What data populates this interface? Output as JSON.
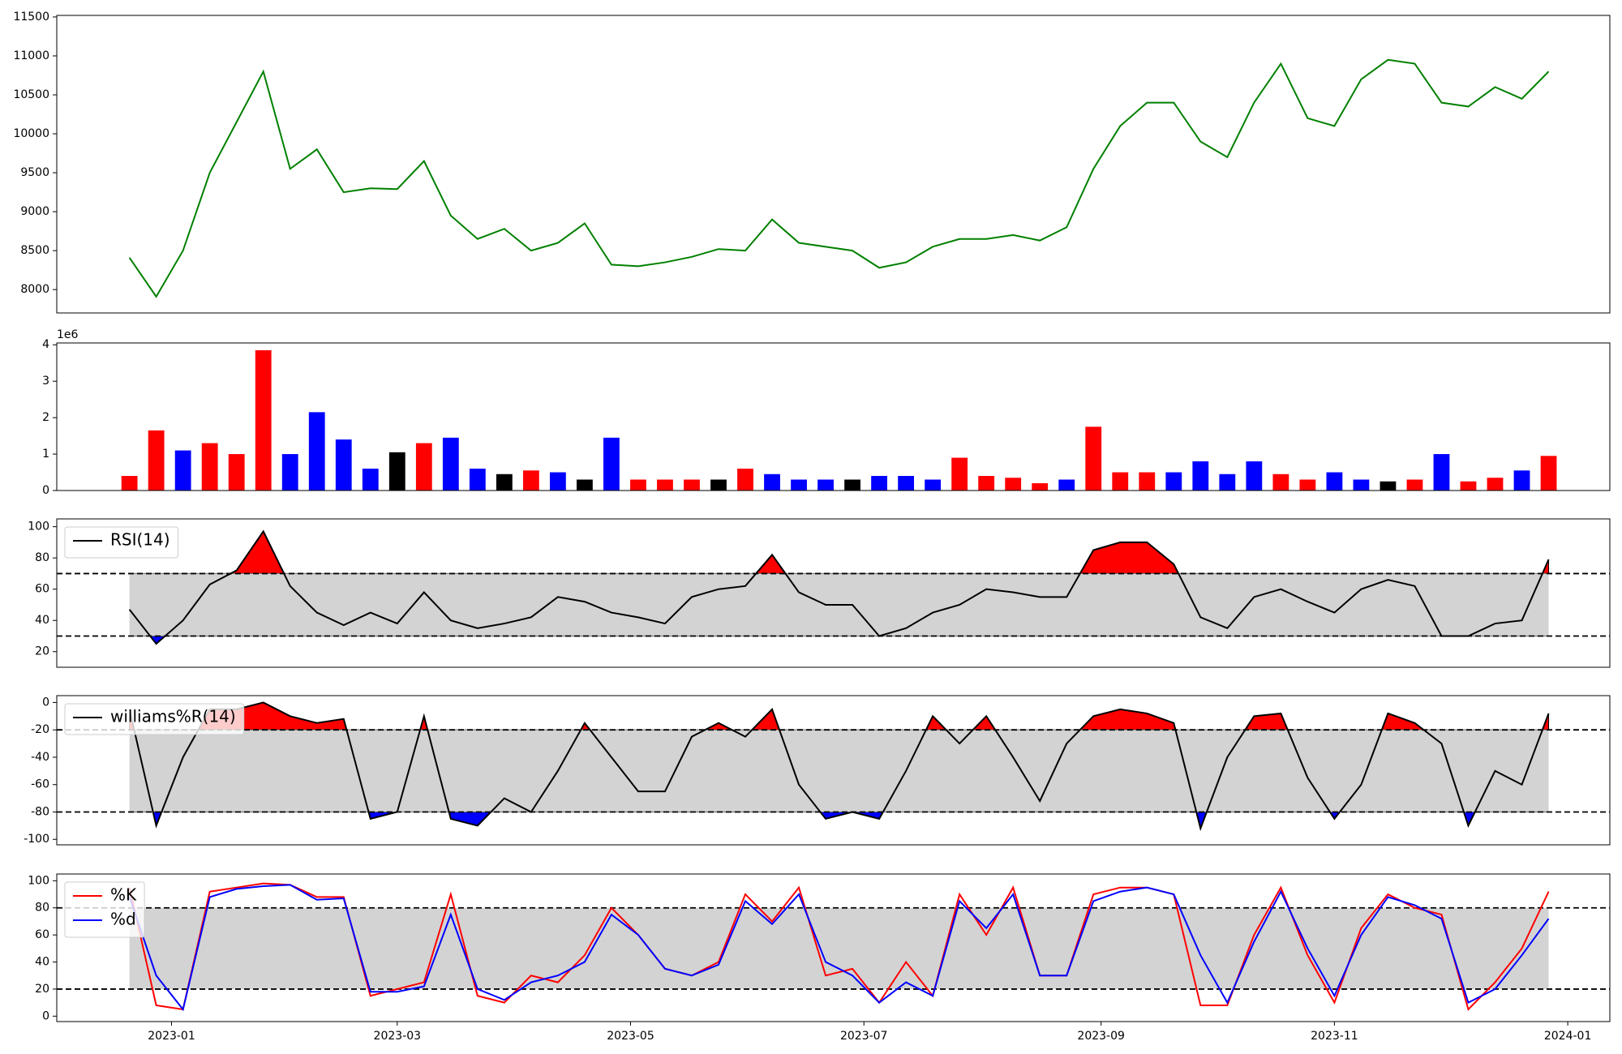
{
  "chart_data": [
    {
      "type": "line",
      "color": "green",
      "x": [
        "2022-12-21",
        "2022-12-28",
        "2023-01-04",
        "2023-01-11",
        "2023-01-18",
        "2023-01-25",
        "2023-02-01",
        "2023-02-08",
        "2023-02-15",
        "2023-02-22",
        "2023-03-01",
        "2023-03-08",
        "2023-03-15",
        "2023-03-22",
        "2023-03-29",
        "2023-04-05",
        "2023-04-12",
        "2023-04-19",
        "2023-04-26",
        "2023-05-03",
        "2023-05-10",
        "2023-05-17",
        "2023-05-24",
        "2023-05-31",
        "2023-06-07",
        "2023-06-14",
        "2023-06-21",
        "2023-06-28",
        "2023-07-05",
        "2023-07-12",
        "2023-07-19",
        "2023-07-26",
        "2023-08-02",
        "2023-08-09",
        "2023-08-16",
        "2023-08-23",
        "2023-08-30",
        "2023-09-06",
        "2023-09-13",
        "2023-09-20",
        "2023-09-27",
        "2023-10-04",
        "2023-10-11",
        "2023-10-18",
        "2023-10-25",
        "2023-11-01",
        "2023-11-08",
        "2023-11-15",
        "2023-11-22",
        "2023-11-29",
        "2023-12-06",
        "2023-12-13",
        "2023-12-20",
        "2023-12-27"
      ],
      "values": [
        8410,
        7910,
        8500,
        9500,
        10150,
        10800,
        9550,
        9800,
        9250,
        9300,
        9290,
        9650,
        8950,
        8650,
        8780,
        8500,
        8600,
        8850,
        8320,
        8300,
        8350,
        8420,
        8520,
        8500,
        8900,
        8600,
        8550,
        8500,
        8280,
        8350,
        8550,
        8650,
        8650,
        8700,
        8630,
        8800,
        9550,
        10100,
        10400,
        10400,
        9900,
        9700,
        10400,
        10900,
        10200,
        10100,
        10700,
        10950,
        10900,
        10400,
        10350,
        10600,
        10450,
        10800
      ],
      "xlim": [
        "2022-12-02",
        "2024-01-12"
      ],
      "ylim": [
        7700,
        11520
      ],
      "yticks": [
        8000,
        8500,
        9000,
        9500,
        10000,
        10500,
        11000,
        11500
      ]
    },
    {
      "type": "bar",
      "offset_label": "1e6",
      "x": [
        "2022-12-21",
        "2022-12-28",
        "2023-01-04",
        "2023-01-11",
        "2023-01-18",
        "2023-01-25",
        "2023-02-01",
        "2023-02-08",
        "2023-02-15",
        "2023-02-22",
        "2023-03-01",
        "2023-03-08",
        "2023-03-15",
        "2023-03-22",
        "2023-03-29",
        "2023-04-05",
        "2023-04-12",
        "2023-04-19",
        "2023-04-26",
        "2023-05-03",
        "2023-05-10",
        "2023-05-17",
        "2023-05-24",
        "2023-05-31",
        "2023-06-07",
        "2023-06-14",
        "2023-06-21",
        "2023-06-28",
        "2023-07-05",
        "2023-07-12",
        "2023-07-19",
        "2023-07-26",
        "2023-08-02",
        "2023-08-09",
        "2023-08-16",
        "2023-08-23",
        "2023-08-30",
        "2023-09-06",
        "2023-09-13",
        "2023-09-20",
        "2023-09-27",
        "2023-10-04",
        "2023-10-11",
        "2023-10-18",
        "2023-10-25",
        "2023-11-01",
        "2023-11-08",
        "2023-11-15",
        "2023-11-22",
        "2023-11-29",
        "2023-12-06",
        "2023-12-13",
        "2023-12-20",
        "2023-12-27"
      ],
      "values": [
        0.4,
        1.65,
        1.1,
        1.3,
        1.0,
        3.85,
        1.0,
        2.15,
        1.4,
        0.6,
        1.05,
        1.3,
        1.45,
        0.6,
        0.45,
        0.55,
        0.5,
        0.3,
        1.45,
        0.3,
        0.3,
        0.3,
        0.3,
        0.6,
        0.45,
        0.3,
        0.3,
        0.3,
        0.4,
        0.4,
        0.3,
        0.9,
        0.4,
        0.35,
        0.2,
        0.3,
        1.75,
        0.5,
        0.5,
        0.5,
        0.8,
        0.45,
        0.8,
        0.45,
        0.3,
        0.5,
        0.3,
        0.25,
        0.3,
        1.0,
        0.25,
        0.35,
        0.55,
        0.95
      ],
      "colors": [
        "red",
        "red",
        "blue",
        "red",
        "red",
        "red",
        "blue",
        "blue",
        "blue",
        "blue",
        "black",
        "red",
        "blue",
        "blue",
        "black",
        "red",
        "blue",
        "black",
        "blue",
        "red",
        "red",
        "red",
        "black",
        "red",
        "blue",
        "blue",
        "blue",
        "black",
        "blue",
        "blue",
        "blue",
        "red",
        "red",
        "red",
        "red",
        "blue",
        "red",
        "red",
        "red",
        "blue",
        "blue",
        "blue",
        "blue",
        "red",
        "red",
        "blue",
        "blue",
        "black",
        "red",
        "blue",
        "red",
        "red",
        "blue",
        "red"
      ],
      "xlim": [
        "2022-12-02",
        "2024-01-12"
      ],
      "ylim": [
        0,
        4.05
      ],
      "yticks": [
        0,
        1,
        2,
        3,
        4
      ]
    },
    {
      "type": "line",
      "legend": "upper left",
      "levels": [
        30,
        70
      ],
      "band_color": "lightgray",
      "fill_above": "red",
      "fill_below": "blue",
      "x": [
        "2022-12-21",
        "2022-12-28",
        "2023-01-04",
        "2023-01-11",
        "2023-01-18",
        "2023-01-25",
        "2023-02-01",
        "2023-02-08",
        "2023-02-15",
        "2023-02-22",
        "2023-03-01",
        "2023-03-08",
        "2023-03-15",
        "2023-03-22",
        "2023-03-29",
        "2023-04-05",
        "2023-04-12",
        "2023-04-19",
        "2023-04-26",
        "2023-05-03",
        "2023-05-10",
        "2023-05-17",
        "2023-05-24",
        "2023-05-31",
        "2023-06-07",
        "2023-06-14",
        "2023-06-21",
        "2023-06-28",
        "2023-07-05",
        "2023-07-12",
        "2023-07-19",
        "2023-07-26",
        "2023-08-02",
        "2023-08-09",
        "2023-08-16",
        "2023-08-23",
        "2023-08-30",
        "2023-09-06",
        "2023-09-13",
        "2023-09-20",
        "2023-09-27",
        "2023-10-04",
        "2023-10-11",
        "2023-10-18",
        "2023-10-25",
        "2023-11-01",
        "2023-11-08",
        "2023-11-15",
        "2023-11-22",
        "2023-11-29",
        "2023-12-06",
        "2023-12-13",
        "2023-12-20",
        "2023-12-27"
      ],
      "series": [
        {
          "name": "RSI(14)",
          "color": "black",
          "values": [
            47,
            25,
            40,
            63,
            72,
            97,
            62,
            45,
            37,
            45,
            38,
            58,
            40,
            35,
            38,
            42,
            55,
            52,
            45,
            42,
            38,
            55,
            60,
            62,
            82,
            58,
            50,
            50,
            30,
            35,
            45,
            50,
            60,
            58,
            55,
            55,
            85,
            90,
            90,
            76,
            42,
            35,
            55,
            60,
            52,
            45,
            60,
            66,
            62,
            30,
            30,
            38,
            40,
            79
          ]
        }
      ],
      "xlim": [
        "2022-12-02",
        "2024-01-12"
      ],
      "ylim": [
        10,
        105
      ],
      "yticks": [
        20,
        40,
        60,
        80,
        100
      ]
    },
    {
      "type": "line",
      "legend": "upper left",
      "levels": [
        -80,
        -20
      ],
      "band_color": "lightgray",
      "fill_above": "red",
      "fill_below": "blue",
      "x": [
        "2022-12-21",
        "2022-12-28",
        "2023-01-04",
        "2023-01-11",
        "2023-01-18",
        "2023-01-25",
        "2023-02-01",
        "2023-02-08",
        "2023-02-15",
        "2023-02-22",
        "2023-03-01",
        "2023-03-08",
        "2023-03-15",
        "2023-03-22",
        "2023-03-29",
        "2023-04-05",
        "2023-04-12",
        "2023-04-19",
        "2023-04-26",
        "2023-05-03",
        "2023-05-10",
        "2023-05-17",
        "2023-05-24",
        "2023-05-31",
        "2023-06-07",
        "2023-06-14",
        "2023-06-21",
        "2023-06-28",
        "2023-07-05",
        "2023-07-12",
        "2023-07-19",
        "2023-07-26",
        "2023-08-02",
        "2023-08-09",
        "2023-08-16",
        "2023-08-23",
        "2023-08-30",
        "2023-09-06",
        "2023-09-13",
        "2023-09-20",
        "2023-09-27",
        "2023-10-04",
        "2023-10-11",
        "2023-10-18",
        "2023-10-25",
        "2023-11-01",
        "2023-11-08",
        "2023-11-15",
        "2023-11-22",
        "2023-11-29",
        "2023-12-06",
        "2023-12-13",
        "2023-12-20",
        "2023-12-27"
      ],
      "series": [
        {
          "name": "williams%R(14)",
          "color": "black",
          "values": [
            -5,
            -90,
            -40,
            -5,
            -5,
            0,
            -10,
            -15,
            -12,
            -85,
            -80,
            -10,
            -85,
            -90,
            -70,
            -80,
            -50,
            -15,
            -40,
            -65,
            -65,
            -25,
            -15,
            -25,
            -5,
            -60,
            -85,
            -80,
            -85,
            -50,
            -10,
            -30,
            -10,
            -40,
            -72,
            -30,
            -10,
            -5,
            -8,
            -15,
            -92,
            -40,
            -10,
            -8,
            -55,
            -85,
            -60,
            -8,
            -15,
            -30,
            -90,
            -50,
            -60,
            -8
          ]
        }
      ],
      "xlim": [
        "2022-12-02",
        "2024-01-12"
      ],
      "ylim": [
        -104,
        5
      ],
      "yticks": [
        -100,
        -80,
        -60,
        -40,
        -20,
        0
      ]
    },
    {
      "type": "line",
      "legend": "upper left",
      "levels": [
        20,
        80
      ],
      "band_color": "lightgray",
      "x": [
        "2022-12-21",
        "2022-12-28",
        "2023-01-04",
        "2023-01-11",
        "2023-01-18",
        "2023-01-25",
        "2023-02-01",
        "2023-02-08",
        "2023-02-15",
        "2023-02-22",
        "2023-03-01",
        "2023-03-08",
        "2023-03-15",
        "2023-03-22",
        "2023-03-29",
        "2023-04-05",
        "2023-04-12",
        "2023-04-19",
        "2023-04-26",
        "2023-05-03",
        "2023-05-10",
        "2023-05-17",
        "2023-05-24",
        "2023-05-31",
        "2023-06-07",
        "2023-06-14",
        "2023-06-21",
        "2023-06-28",
        "2023-07-05",
        "2023-07-12",
        "2023-07-19",
        "2023-07-26",
        "2023-08-02",
        "2023-08-09",
        "2023-08-16",
        "2023-08-23",
        "2023-08-30",
        "2023-09-06",
        "2023-09-13",
        "2023-09-20",
        "2023-09-27",
        "2023-10-04",
        "2023-10-11",
        "2023-10-18",
        "2023-10-25",
        "2023-11-01",
        "2023-11-08",
        "2023-11-15",
        "2023-11-22",
        "2023-11-29",
        "2023-12-06",
        "2023-12-13",
        "2023-12-20",
        "2023-12-27"
      ],
      "series": [
        {
          "name": "%K",
          "color": "red",
          "values": [
            95,
            8,
            5,
            92,
            95,
            98,
            97,
            88,
            88,
            15,
            20,
            25,
            90,
            15,
            10,
            30,
            25,
            45,
            80,
            60,
            35,
            30,
            40,
            90,
            70,
            95,
            30,
            35,
            10,
            40,
            15,
            90,
            60,
            95,
            30,
            30,
            90,
            95,
            95,
            90,
            8,
            8,
            60,
            95,
            45,
            10,
            65,
            90,
            80,
            75,
            5,
            25,
            50,
            92
          ]
        },
        {
          "name": "%d",
          "color": "blue",
          "values": [
            88,
            30,
            5,
            88,
            94,
            96,
            97,
            86,
            87,
            18,
            18,
            22,
            75,
            20,
            12,
            25,
            30,
            40,
            75,
            60,
            35,
            30,
            38,
            85,
            68,
            90,
            40,
            30,
            10,
            25,
            15,
            85,
            65,
            90,
            30,
            30,
            85,
            92,
            95,
            90,
            45,
            10,
            55,
            92,
            50,
            15,
            60,
            88,
            82,
            72,
            10,
            20,
            45,
            72
          ]
        }
      ],
      "xlim": [
        "2022-12-02",
        "2024-01-12"
      ],
      "ylim": [
        -4,
        105
      ],
      "yticks": [
        0,
        20,
        40,
        60,
        80,
        100
      ],
      "xticks": [
        {
          "value": "2023-01-01",
          "label": "2023-01"
        },
        {
          "value": "2023-03-01",
          "label": "2023-03"
        },
        {
          "value": "2023-05-01",
          "label": "2023-05"
        },
        {
          "value": "2023-07-01",
          "label": "2023-07"
        },
        {
          "value": "2023-09-01",
          "label": "2023-09"
        },
        {
          "value": "2023-11-01",
          "label": "2023-11"
        },
        {
          "value": "2024-01-01",
          "label": "2024-01"
        }
      ]
    }
  ]
}
